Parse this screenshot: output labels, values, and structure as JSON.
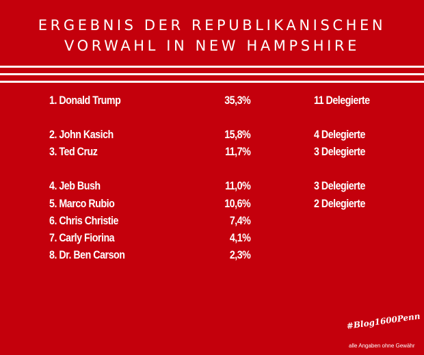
{
  "header": {
    "line1": "ERGEBNIS DER REPUBLIKANISCHEN",
    "line2": "VORWAHL IN NEW HAMPSHIRE"
  },
  "results": [
    {
      "name": "1. Donald Trump",
      "percent": "35,3%",
      "delegates": "11 Delegierte"
    },
    {
      "name": "2. John Kasich",
      "percent": "15,8%",
      "delegates": "4 Delegierte"
    },
    {
      "name": "3. Ted Cruz",
      "percent": "11,7%",
      "delegates": "3 Delegierte"
    },
    {
      "name": "4. Jeb Bush",
      "percent": "11,0%",
      "delegates": "3 Delegierte"
    },
    {
      "name": "5. Marco Rubio",
      "percent": "10,6%",
      "delegates": "2 Delegierte"
    },
    {
      "name": "6. Chris Christie",
      "percent": "7,4%",
      "delegates": ""
    },
    {
      "name": "7. Carly Fiorina",
      "percent": "4,1%",
      "delegates": ""
    },
    {
      "name": "8. Dr. Ben Carson",
      "percent": "2,3%",
      "delegates": ""
    }
  ],
  "footer": {
    "hashtag": "#Blog1600Penn",
    "disclaimer": "alle Angaben ohne Gewähr"
  },
  "colors": {
    "background": "#c4000c",
    "text": "#ffffff"
  }
}
